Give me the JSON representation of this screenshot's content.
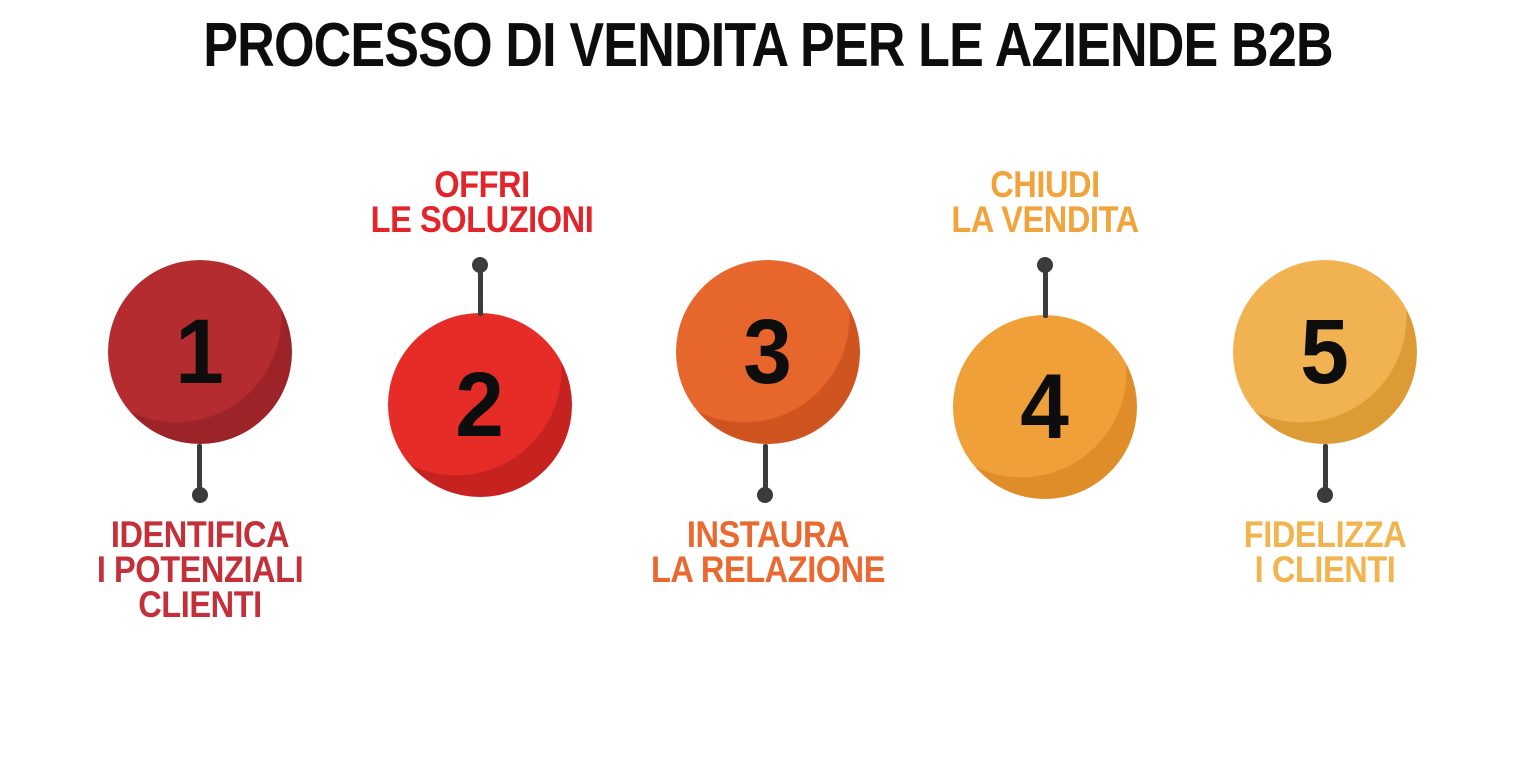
{
  "title": "PROCESSO DI VENDITA PER LE AZIENDE B2B",
  "connector_color": "#3b3b3b",
  "steps": [
    {
      "number": "1",
      "label": "IDENTIFICA\nI POTENZIALI\nCLIENTI",
      "label_position": "below",
      "ball_color": "#b42b30",
      "ball_shade": "#9c2429",
      "text_color": "#c4303a"
    },
    {
      "number": "2",
      "label": "OFFRI\nLE SOLUZIONI",
      "label_position": "above",
      "ball_color": "#e52c27",
      "ball_shade": "#c52220",
      "text_color": "#e2242b"
    },
    {
      "number": "3",
      "label": "INSTAURA\nLA RELAZIONE",
      "label_position": "below",
      "ball_color": "#e6662b",
      "ball_shade": "#d05420",
      "text_color": "#e96931"
    },
    {
      "number": "4",
      "label": "CHIUDI\nLA VENDITA",
      "label_position": "above",
      "ball_color": "#f0a038",
      "ball_shade": "#df8d29",
      "text_color": "#f1a33c"
    },
    {
      "number": "5",
      "label": "FIDELIZZA\nI CLIENTI",
      "label_position": "below",
      "ball_color": "#f1b351",
      "ball_shade": "#dd9b36",
      "text_color": "#f2b44f"
    }
  ]
}
